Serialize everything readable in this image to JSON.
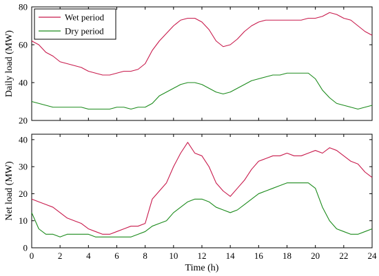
{
  "chart_data": [
    {
      "type": "line",
      "ylabel": "Daily load (MW)",
      "xlim": [
        0,
        24
      ],
      "ylim": [
        20,
        80
      ],
      "y_ticks": [
        "20",
        "40",
        "60",
        "80"
      ],
      "legend": {
        "placement": "top-left"
      },
      "series": [
        {
          "name": "Wet period",
          "color": "#c8194b",
          "x": [
            0,
            0.5,
            1,
            1.5,
            2,
            2.5,
            3,
            3.5,
            4,
            4.5,
            5,
            5.5,
            6,
            6.5,
            7,
            7.5,
            8,
            8.5,
            9,
            9.5,
            10,
            10.5,
            11,
            11.5,
            12,
            12.5,
            13,
            13.5,
            14,
            14.5,
            15,
            15.5,
            16,
            16.5,
            17,
            17.5,
            18,
            18.5,
            19,
            19.5,
            20,
            20.5,
            21,
            21.5,
            22,
            22.5,
            23,
            23.5,
            24
          ],
          "values": [
            62,
            60,
            56,
            54,
            51,
            50,
            49,
            48,
            46,
            45,
            44,
            44,
            45,
            46,
            46,
            47,
            50,
            57,
            62,
            66,
            70,
            73,
            74,
            74,
            72,
            68,
            62,
            59,
            60,
            63,
            67,
            70,
            72,
            73,
            73,
            73,
            73,
            73,
            73,
            74,
            74,
            75,
            77,
            76,
            74,
            73,
            70,
            67,
            65
          ]
        },
        {
          "name": "Dry period",
          "color": "#1a8a1a",
          "x": [
            0,
            0.5,
            1,
            1.5,
            2,
            2.5,
            3,
            3.5,
            4,
            4.5,
            5,
            5.5,
            6,
            6.5,
            7,
            7.5,
            8,
            8.5,
            9,
            9.5,
            10,
            10.5,
            11,
            11.5,
            12,
            12.5,
            13,
            13.5,
            14,
            14.5,
            15,
            15.5,
            16,
            16.5,
            17,
            17.5,
            18,
            18.5,
            19,
            19.5,
            20,
            20.5,
            21,
            21.5,
            22,
            22.5,
            23,
            23.5,
            24
          ],
          "values": [
            30,
            29,
            28,
            27,
            27,
            27,
            27,
            27,
            26,
            26,
            26,
            26,
            27,
            27,
            26,
            27,
            27,
            29,
            33,
            35,
            37,
            39,
            40,
            40,
            39,
            37,
            35,
            34,
            35,
            37,
            39,
            41,
            42,
            43,
            44,
            44,
            45,
            45,
            45,
            45,
            42,
            36,
            32,
            29,
            28,
            27,
            26,
            27,
            28
          ]
        }
      ]
    },
    {
      "type": "line",
      "xlabel": "Time (h)",
      "ylabel": "Net load (MW)",
      "xlim": [
        0,
        24
      ],
      "ylim": [
        0,
        42
      ],
      "x_ticks": [
        "0",
        "2",
        "4",
        "6",
        "8",
        "10",
        "12",
        "14",
        "16",
        "18",
        "20",
        "22",
        "24"
      ],
      "y_ticks": [
        "0",
        "10",
        "20",
        "30",
        "40"
      ],
      "series": [
        {
          "color": "#c8194b",
          "x": [
            0,
            0.5,
            1,
            1.5,
            2,
            2.5,
            3,
            3.5,
            4,
            4.5,
            5,
            5.5,
            6,
            6.5,
            7,
            7.5,
            8,
            8.5,
            9,
            9.5,
            10,
            10.5,
            11,
            11.5,
            12,
            12.5,
            13,
            13.5,
            14,
            14.5,
            15,
            15.5,
            16,
            16.5,
            17,
            17.5,
            18,
            18.5,
            19,
            19.5,
            20,
            20.5,
            21,
            21.5,
            22,
            22.5,
            23,
            23.5,
            24
          ],
          "values": [
            18,
            17,
            16,
            15,
            13,
            11,
            10,
            9,
            7,
            6,
            5,
            5,
            6,
            7,
            8,
            8,
            9,
            18,
            21,
            24,
            30,
            35,
            39,
            35,
            34,
            30,
            24,
            21,
            19,
            22,
            25,
            29,
            32,
            33,
            34,
            34,
            35,
            34,
            34,
            35,
            36,
            35,
            37,
            36,
            34,
            32,
            31,
            28,
            26
          ]
        },
        {
          "color": "#1a8a1a",
          "x": [
            0,
            0.5,
            1,
            1.5,
            2,
            2.5,
            3,
            3.5,
            4,
            4.5,
            5,
            5.5,
            6,
            6.5,
            7,
            7.5,
            8,
            8.5,
            9,
            9.5,
            10,
            10.5,
            11,
            11.5,
            12,
            12.5,
            13,
            13.5,
            14,
            14.5,
            15,
            15.5,
            16,
            16.5,
            17,
            17.5,
            18,
            18.5,
            19,
            19.5,
            20,
            20.5,
            21,
            21.5,
            22,
            22.5,
            23,
            23.5,
            24
          ],
          "values": [
            13,
            7,
            5,
            5,
            4,
            5,
            5,
            5,
            5,
            4,
            4,
            4,
            4,
            4,
            4,
            5,
            6,
            8,
            9,
            10,
            13,
            15,
            17,
            18,
            18,
            17,
            15,
            14,
            13,
            14,
            16,
            18,
            20,
            21,
            22,
            23,
            24,
            24,
            24,
            24,
            22,
            15,
            10,
            7,
            6,
            5,
            5,
            6,
            7
          ]
        }
      ]
    }
  ]
}
